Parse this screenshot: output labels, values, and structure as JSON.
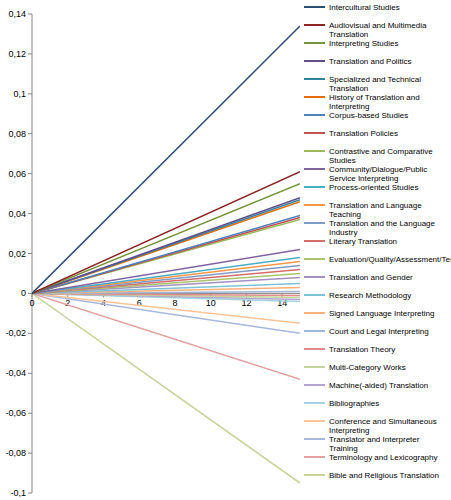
{
  "chart_data": {
    "type": "line",
    "x": [
      0,
      15
    ],
    "xlim": [
      0,
      15
    ],
    "xticks": [
      0,
      2,
      4,
      6,
      8,
      10,
      12,
      14
    ],
    "ylim": [
      -0.1,
      0.14
    ],
    "yticks": [
      {
        "value": 0.14,
        "label": "0,14"
      },
      {
        "value": 0.12,
        "label": "0,12"
      },
      {
        "value": 0.1,
        "label": "0,1"
      },
      {
        "value": 0.08,
        "label": "0,08"
      },
      {
        "value": 0.06,
        "label": "0,06"
      },
      {
        "value": 0.04,
        "label": "0,04"
      },
      {
        "value": 0.02,
        "label": "0,02"
      },
      0,
      {
        "value": -0.02,
        "label": "-0,02"
      },
      {
        "value": -0.04,
        "label": "-0,04"
      },
      {
        "value": -0.06,
        "label": "-0,06"
      },
      {
        "value": -0.08,
        "label": "-0,08"
      },
      {
        "value": -0.1,
        "label": "-0,1"
      }
    ],
    "grid": false,
    "legend": "right",
    "series": [
      {
        "name": "Intercultural Studies",
        "color": "#2c4d75",
        "values": [
          0,
          0.134
        ]
      },
      {
        "name": "Audiovisual and Multimedia Translation",
        "color": "#8b2422",
        "values": [
          0,
          0.061
        ]
      },
      {
        "name": "Interpreting Studies",
        "color": "#77933c",
        "values": [
          0,
          0.055
        ]
      },
      {
        "name": "Translation and Politics",
        "color": "#5f4b8b",
        "values": [
          0,
          0.048
        ]
      },
      {
        "name": "Specialized and Technical Translation",
        "color": "#31859c",
        "values": [
          0,
          0.047
        ]
      },
      {
        "name": "History of Translation and Interpreting",
        "color": "#e46c0a",
        "values": [
          0,
          0.046
        ]
      },
      {
        "name": "Corpus-based Studies",
        "color": "#4f81bd",
        "values": [
          0,
          0.039
        ]
      },
      {
        "name": "Translation Policies",
        "color": "#c0504d",
        "values": [
          0,
          0.038
        ]
      },
      {
        "name": "Contrastive and Comparative Studies",
        "color": "#9bbb59",
        "values": [
          0,
          0.037
        ]
      },
      {
        "name": "Community/Dialogue/Public Service Interpreting",
        "color": "#8064a2",
        "values": [
          0,
          0.022
        ]
      },
      {
        "name": "Process-oriented Studies",
        "color": "#4bacc6",
        "values": [
          0,
          0.018
        ]
      },
      {
        "name": "Translation and Language Teaching",
        "color": "#f79646",
        "values": [
          0,
          0.016
        ]
      },
      {
        "name": "Translation and the Language Industry",
        "color": "#7f9cc8",
        "values": [
          0,
          0.014
        ]
      },
      {
        "name": "Literary Translation",
        "color": "#d46b6b",
        "values": [
          0,
          0.012
        ]
      },
      {
        "name": "Evaluation/Quality/Assessment/Testing",
        "color": "#a9c46c",
        "values": [
          0,
          0.01
        ]
      },
      {
        "name": "Translation and Gender",
        "color": "#a491c2",
        "values": [
          0,
          0.008
        ]
      },
      {
        "name": "Research Methodology",
        "color": "#7cc3d6",
        "values": [
          0,
          0.005
        ]
      },
      {
        "name": "Signed Language Interpreting",
        "color": "#f8b07a",
        "values": [
          0,
          0.003
        ]
      },
      {
        "name": "Court and Legal Interpreting",
        "color": "#9fb6d8",
        "values": [
          0,
          0.001
        ]
      },
      {
        "name": "Translation Theory",
        "color": "#e08c8c",
        "values": [
          0,
          -0.001
        ]
      },
      {
        "name": "Multi-Category Works",
        "color": "#c4d49a",
        "values": [
          0,
          -0.002
        ]
      },
      {
        "name": "Machine(-aided) Translation",
        "color": "#b2a6cc",
        "values": [
          0,
          -0.003
        ]
      },
      {
        "name": "Bibliographies",
        "color": "#a6d4e0",
        "values": [
          0,
          -0.004
        ]
      },
      {
        "name": "Conference and Simultaneous Interpreting",
        "color": "#f9c49a",
        "values": [
          0,
          -0.015
        ]
      },
      {
        "name": "Translator and Interpreter Training",
        "color": "#a8b8dc",
        "values": [
          0,
          -0.02
        ]
      },
      {
        "name": "Terminology and Lexicography",
        "color": "#e3a0a0",
        "values": [
          0,
          -0.043
        ]
      },
      {
        "name": "Bible and Religious Translation",
        "color": "#c8d39a",
        "values": [
          0,
          -0.095
        ]
      }
    ]
  }
}
